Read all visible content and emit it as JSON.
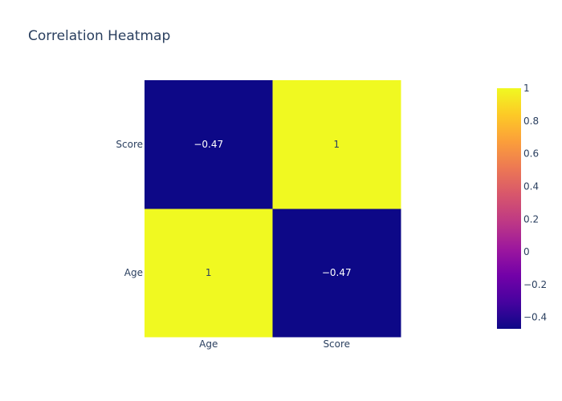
{
  "chart_data": {
    "type": "heatmap",
    "title": "Correlation Heatmap",
    "x_categories": [
      "Age",
      "Score"
    ],
    "y_categories": [
      "Age",
      "Score"
    ],
    "values": [
      [
        1,
        -0.47
      ],
      [
        -0.47,
        1
      ]
    ],
    "cell_labels": [
      [
        "1",
        "−0.47"
      ],
      [
        "−0.47",
        "1"
      ]
    ],
    "colorscale": "plasma",
    "zrange": [
      -0.47,
      1
    ],
    "colorbar": {
      "tick_values": [
        1,
        0.8,
        0.6,
        0.4,
        0.2,
        0,
        -0.2,
        -0.4
      ],
      "tick_labels": [
        "1",
        "0.8",
        "0.6",
        "0.4",
        "0.2",
        "0",
        "−0.2",
        "−0.4"
      ]
    },
    "grid": false
  }
}
